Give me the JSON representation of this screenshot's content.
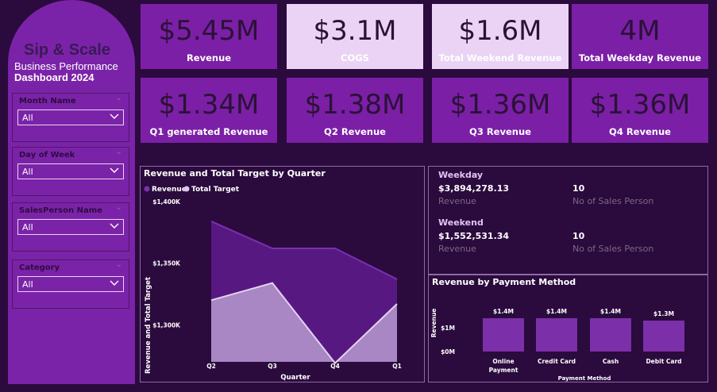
{
  "sidebar": {
    "title": "Sip & Scale",
    "subtitle_line1": "Business Performance",
    "subtitle_line2": "Dashboard  2024",
    "filters": [
      {
        "label": "Month Name",
        "value": "All"
      },
      {
        "label": "Day of Week",
        "value": "All"
      },
      {
        "label": "SalesPerson Name",
        "value": "All"
      },
      {
        "label": "Category",
        "value": "All"
      }
    ]
  },
  "kpis": [
    {
      "value": "$5.45M",
      "label": "Revenue"
    },
    {
      "value": "$3.1M",
      "label": "COGS"
    },
    {
      "value": "$1.6M",
      "label": "Total Weekend Revenue"
    },
    {
      "value": "4M",
      "label": "Total Weekday Revenue"
    },
    {
      "value": "$1.34M",
      "label": "Q1 generated Revenue"
    },
    {
      "value": "$1.38M",
      "label": "Q2 Revenue"
    },
    {
      "value": "$1.36M",
      "label": "Q3 Revenue"
    },
    {
      "value": "$1.36M",
      "label": "Q4 Revenue"
    }
  ],
  "weekday_weekend": {
    "weekday": {
      "title": "Weekday",
      "revenue": "$3,894,278.13",
      "revenue_label": "Revenue",
      "sales_persons": "10",
      "sales_persons_label": "No of Sales Person"
    },
    "weekend": {
      "title": "Weekend",
      "revenue": "$1,552,531.34",
      "revenue_label": "Revenue",
      "sales_persons": "10",
      "sales_persons_label": "No of Sales Person"
    }
  },
  "colors": {
    "background": "#2b0a3d",
    "sidebar": "#7b23a8",
    "kpi_dark": "#7b1fa6",
    "kpi_light": "#ead3f4",
    "revenue_series": "#5a1a85",
    "target_series": "#b79ad0",
    "bar": "#7b2fa8"
  },
  "chart_data": [
    {
      "type": "area",
      "title": "Revenue and Total Target by Quarter",
      "xlabel": "Quarter",
      "ylabel": "Revenue and Total Target",
      "categories": [
        "Q2",
        "Q3",
        "Q4",
        "Q1"
      ],
      "series": [
        {
          "name": "Revenue",
          "values": [
            1384000,
            1362000,
            1362000,
            1337000
          ]
        },
        {
          "name": "Total Target",
          "values": [
            1320000,
            1334000,
            1269000,
            1317000
          ]
        }
      ],
      "yticks": [
        "$1,400K",
        "$1,350K",
        "$1,300K"
      ],
      "yticks_values": [
        1400000,
        1350000,
        1300000
      ],
      "ylim": [
        1270000,
        1400000
      ],
      "legend": "top-left",
      "grid": false
    },
    {
      "type": "bar",
      "title": "Revenue by Payment Method",
      "xlabel": "Payment Method",
      "ylabel": "Revenue",
      "categories": [
        "Online Payment",
        "Credit Card",
        "Cash",
        "Debit Card"
      ],
      "values": [
        1400000,
        1400000,
        1400000,
        1300000
      ],
      "data_labels": [
        "$1.4M",
        "$1.4M",
        "$1.4M",
        "$1.3M"
      ],
      "yticks": [
        "$1M",
        "$0M"
      ],
      "yticks_values": [
        1000000,
        0
      ],
      "ylim": [
        0,
        1400000
      ],
      "grid": false
    }
  ]
}
